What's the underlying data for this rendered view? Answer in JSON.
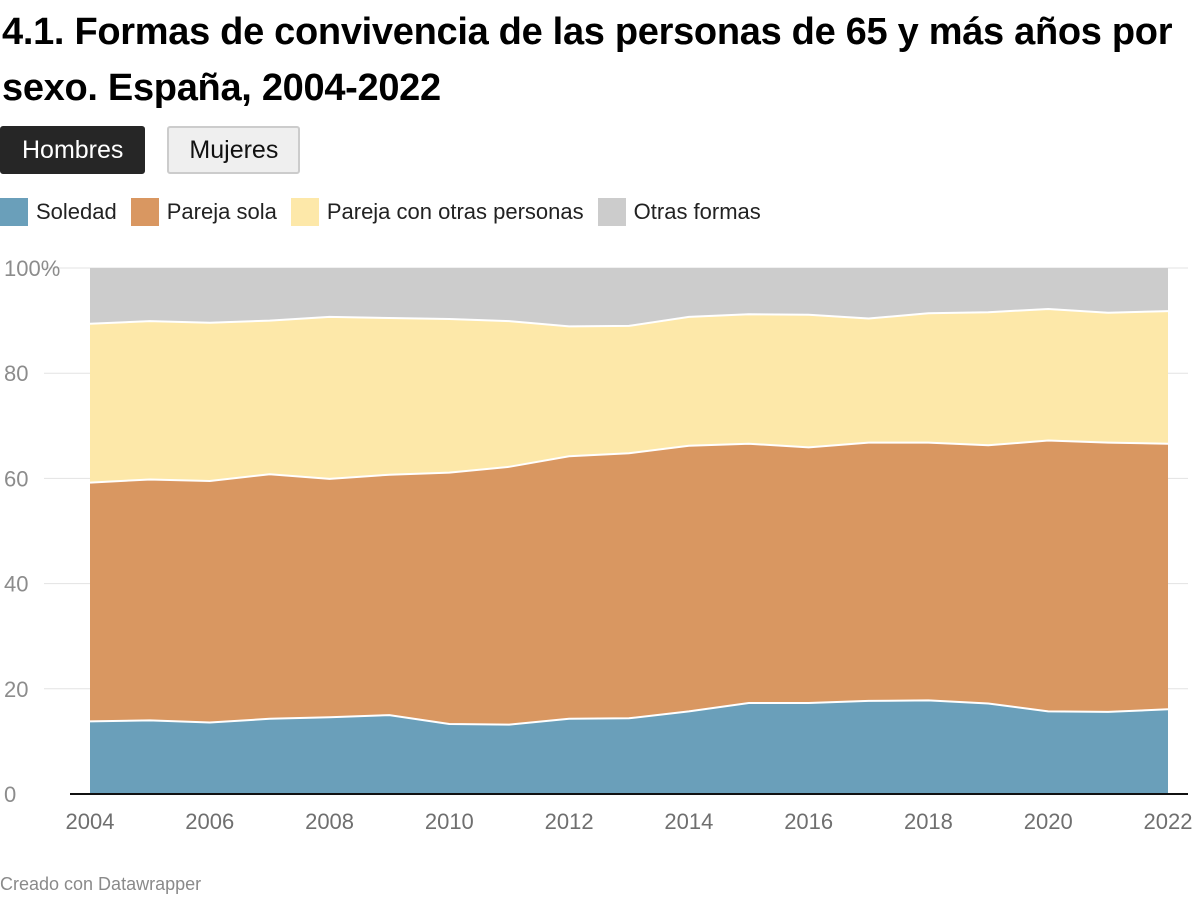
{
  "header": {
    "title": "4.1. Formas de convivencia de las personas de 65 y más años por sexo. España, 2004-2022"
  },
  "tabs": [
    {
      "label": "Hombres",
      "active": true
    },
    {
      "label": "Mujeres",
      "active": false
    }
  ],
  "footer": {
    "credit": "Creado con Datawrapper"
  },
  "chart_data": {
    "type": "area",
    "stacked": true,
    "title": "4.1. Formas de convivencia de las personas de 65 y más años por sexo. España, 2004-2022",
    "selected_group": "Hombres",
    "xlabel": "",
    "ylabel": "",
    "x": [
      2004,
      2005,
      2006,
      2007,
      2008,
      2009,
      2010,
      2011,
      2012,
      2013,
      2014,
      2015,
      2016,
      2017,
      2018,
      2019,
      2020,
      2021,
      2022
    ],
    "x_ticks": [
      "2004",
      "2006",
      "2008",
      "2010",
      "2012",
      "2014",
      "2016",
      "2018",
      "2020",
      "2022"
    ],
    "y_ticks": [
      "0",
      "20",
      "40",
      "60",
      "80",
      "100%"
    ],
    "ylim": [
      0,
      100
    ],
    "grid": true,
    "legend_position": "top-left",
    "series": [
      {
        "name": "Soledad",
        "color": "#6a9fba",
        "values": [
          13.8,
          14.0,
          13.6,
          14.3,
          14.6,
          15.0,
          13.3,
          13.2,
          14.3,
          14.4,
          15.7,
          17.3,
          17.3,
          17.7,
          17.8,
          17.2,
          15.7,
          15.6,
          16.1
        ]
      },
      {
        "name": "Pareja sola",
        "color": "#d99761",
        "values": [
          45.4,
          45.8,
          45.9,
          46.5,
          45.3,
          45.7,
          47.8,
          49.0,
          49.9,
          50.4,
          50.5,
          49.3,
          48.6,
          49.1,
          49.0,
          49.1,
          51.5,
          51.2,
          50.5
        ]
      },
      {
        "name": "Pareja con otras personas",
        "color": "#fde8a9",
        "values": [
          30.2,
          30.1,
          30.1,
          29.2,
          30.8,
          29.8,
          29.2,
          27.7,
          24.7,
          24.2,
          24.5,
          24.6,
          25.2,
          23.6,
          24.6,
          25.3,
          25.0,
          24.7,
          25.2
        ]
      },
      {
        "name": "Otras formas",
        "color": "#cccccc",
        "values": [
          10.6,
          10.1,
          10.4,
          10.0,
          9.3,
          9.5,
          9.7,
          10.1,
          11.1,
          11.0,
          9.3,
          8.8,
          8.9,
          9.6,
          8.6,
          8.4,
          7.8,
          8.5,
          8.2
        ]
      }
    ]
  }
}
